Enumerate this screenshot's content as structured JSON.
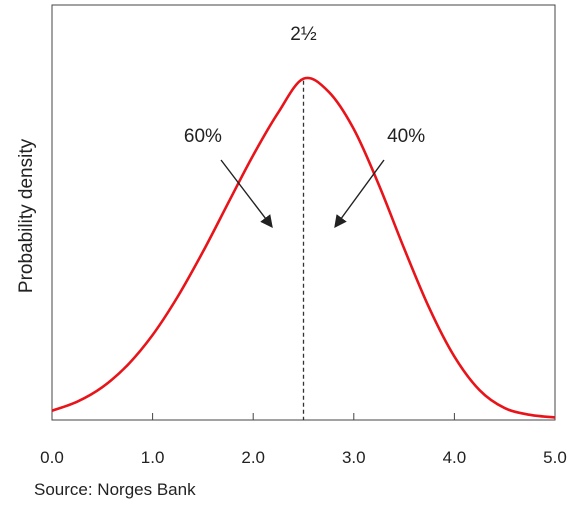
{
  "chart_data": {
    "type": "line",
    "ylabel": "Probability density",
    "xlabel": "",
    "xlim": [
      0.0,
      5.0
    ],
    "x_ticks": [
      "0.0",
      "1.0",
      "2.0",
      "3.0",
      "4.0",
      "5.0"
    ],
    "grid": false,
    "series": [
      {
        "color": "#e8141a",
        "x": [
          0.0,
          0.25,
          0.5,
          0.75,
          1.0,
          1.25,
          1.5,
          1.75,
          2.0,
          2.25,
          2.5,
          2.75,
          3.0,
          3.25,
          3.5,
          3.75,
          4.0,
          4.25,
          4.5,
          4.75,
          5.0
        ],
        "y": [
          0.025,
          0.049,
          0.088,
          0.147,
          0.228,
          0.331,
          0.451,
          0.581,
          0.71,
          0.825,
          0.915,
          0.88,
          0.78,
          0.63,
          0.46,
          0.3,
          0.17,
          0.08,
          0.032,
          0.014,
          0.007
        ]
      }
    ],
    "mode": {
      "x": 2.5,
      "label": "2½"
    },
    "annotations": [
      {
        "text": "60%",
        "side": "left"
      },
      {
        "text": "40%",
        "side": "right"
      }
    ],
    "colors": {
      "curve": "#e8141a",
      "axis": "#444444",
      "text": "#222222"
    }
  },
  "source": "Source: Norges Bank"
}
